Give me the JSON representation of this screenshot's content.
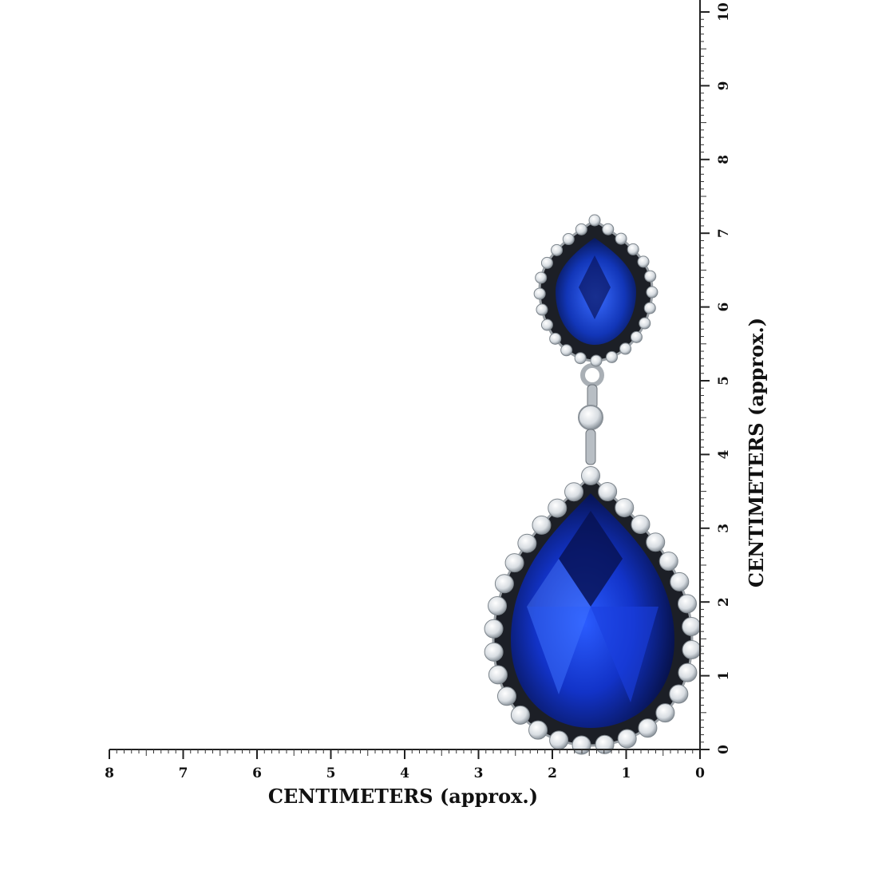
{
  "horizontal_ruler": {
    "title": "CENTIMETERS (approx.)",
    "ticks": [
      8,
      7,
      6,
      5,
      4,
      3,
      2,
      1,
      0
    ]
  },
  "vertical_ruler": {
    "title": "CENTIMETERS (approx.)",
    "ticks": [
      0,
      1,
      2,
      3,
      4,
      5,
      6,
      7,
      8,
      9,
      10
    ]
  }
}
